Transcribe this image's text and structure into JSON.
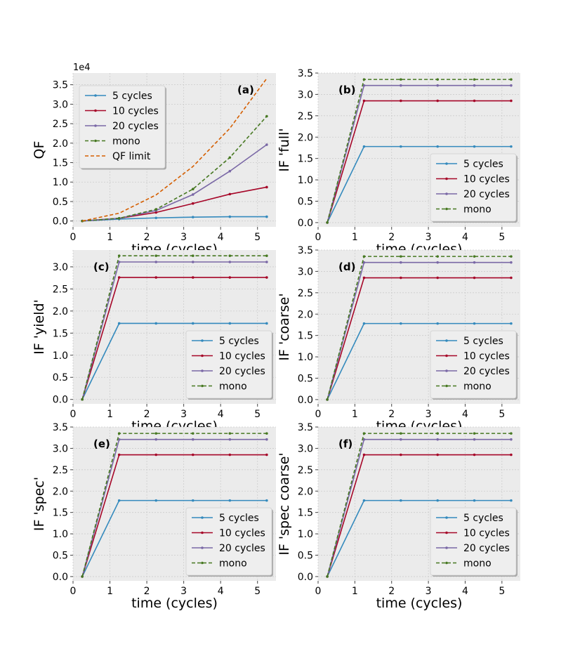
{
  "colors": {
    "5 cycles": "#348abd",
    "10 cycles": "#a60628",
    "20 cycles": "#7a68a6",
    "mono": "#467821",
    "QF limit": "#d55e00",
    "panel_bg": "#ebebeb",
    "grid": "#cccccc"
  },
  "chart_data": [
    {
      "id": "a",
      "type": "line",
      "panel_label": "(a)",
      "xlabel": "time (cycles)",
      "ylabel": "QF",
      "offset_text": "1e4",
      "xlim": [
        0,
        5.5
      ],
      "ylim": [
        -0.15,
        3.8
      ],
      "xticks": [
        0,
        1,
        2,
        3,
        4,
        5
      ],
      "yticks": [
        0.0,
        0.5,
        1.0,
        1.5,
        2.0,
        2.5,
        3.0,
        3.5
      ],
      "yticklabels": [
        "0.0",
        "0.5",
        "1.0",
        "1.5",
        "2.0",
        "2.5",
        "3.0",
        "3.5"
      ],
      "legend_loc": "upper-left",
      "x": [
        0.25,
        1.25,
        2.25,
        3.25,
        4.25,
        5.25
      ],
      "series": [
        {
          "name": "5 cycles",
          "style": "solid",
          "values": [
            0.0,
            0.05,
            0.08,
            0.1,
            0.11,
            0.11
          ]
        },
        {
          "name": "10 cycles",
          "style": "solid",
          "values": [
            0.0,
            0.07,
            0.22,
            0.45,
            0.69,
            0.87
          ]
        },
        {
          "name": "20 cycles",
          "style": "solid",
          "values": [
            0.0,
            0.07,
            0.27,
            0.68,
            1.28,
            1.96
          ]
        },
        {
          "name": "mono",
          "style": "dashed",
          "values": [
            0.0,
            0.07,
            0.3,
            0.82,
            1.63,
            2.69
          ]
        },
        {
          "name": "QF limit",
          "style": "dashed",
          "markers": false,
          "values": [
            0.0,
            0.2,
            0.67,
            1.4,
            2.38,
            3.66
          ]
        }
      ]
    },
    {
      "id": "b",
      "type": "line",
      "panel_label": "(b)",
      "xlabel": "time (cycles)",
      "ylabel": "IF 'full'",
      "xlim": [
        0,
        5.5
      ],
      "ylim": [
        -0.1,
        3.5
      ],
      "xticks": [
        0,
        1,
        2,
        3,
        4,
        5
      ],
      "yticks": [
        0.0,
        0.5,
        1.0,
        1.5,
        2.0,
        2.5,
        3.0,
        3.5
      ],
      "yticklabels": [
        "0.0",
        "0.5",
        "1.0",
        "1.5",
        "2.0",
        "2.5",
        "3.0",
        "3.5"
      ],
      "legend_loc": "lower-right",
      "x": [
        0.25,
        1.25,
        2.25,
        3.25,
        4.25,
        5.25
      ],
      "series": [
        {
          "name": "5 cycles",
          "style": "solid",
          "values": [
            0,
            1.78,
            1.78,
            1.78,
            1.78,
            1.78
          ]
        },
        {
          "name": "10 cycles",
          "style": "solid",
          "values": [
            0,
            2.85,
            2.85,
            2.85,
            2.85,
            2.85
          ]
        },
        {
          "name": "20 cycles",
          "style": "solid",
          "values": [
            0,
            3.21,
            3.21,
            3.21,
            3.21,
            3.21
          ]
        },
        {
          "name": "mono",
          "style": "dashed",
          "values": [
            0,
            3.35,
            3.35,
            3.35,
            3.35,
            3.35
          ]
        }
      ]
    },
    {
      "id": "c",
      "type": "line",
      "panel_label": "(c)",
      "xlabel": "time (cycles)",
      "ylabel": "IF 'yield'",
      "xlim": [
        0,
        5.5
      ],
      "ylim": [
        -0.1,
        3.38
      ],
      "xticks": [
        0,
        1,
        2,
        3,
        4,
        5
      ],
      "yticks": [
        0.0,
        0.5,
        1.0,
        1.5,
        2.0,
        2.5,
        3.0
      ],
      "yticklabels": [
        "0.0",
        "0.5",
        "1.0",
        "1.5",
        "2.0",
        "2.5",
        "3.0"
      ],
      "legend_loc": "lower-right",
      "x": [
        0.25,
        1.25,
        2.25,
        3.25,
        4.25,
        5.25
      ],
      "series": [
        {
          "name": "5 cycles",
          "style": "solid",
          "values": [
            0,
            1.72,
            1.72,
            1.72,
            1.72,
            1.72
          ]
        },
        {
          "name": "10 cycles",
          "style": "solid",
          "values": [
            0,
            2.76,
            2.76,
            2.76,
            2.76,
            2.76
          ]
        },
        {
          "name": "20 cycles",
          "style": "solid",
          "values": [
            0,
            3.11,
            3.11,
            3.11,
            3.11,
            3.11
          ]
        },
        {
          "name": "mono",
          "style": "dashed",
          "values": [
            0,
            3.25,
            3.25,
            3.25,
            3.25,
            3.25
          ]
        }
      ]
    },
    {
      "id": "d",
      "type": "line",
      "panel_label": "(d)",
      "xlabel": "time (cycles)",
      "ylabel": "IF 'coarse'",
      "xlim": [
        0,
        5.5
      ],
      "ylim": [
        -0.1,
        3.5
      ],
      "xticks": [
        0,
        1,
        2,
        3,
        4,
        5
      ],
      "yticks": [
        0.0,
        0.5,
        1.0,
        1.5,
        2.0,
        2.5,
        3.0,
        3.5
      ],
      "yticklabels": [
        "0.0",
        "0.5",
        "1.0",
        "1.5",
        "2.0",
        "2.5",
        "3.0",
        "3.5"
      ],
      "legend_loc": "lower-right",
      "x": [
        0.25,
        1.25,
        2.25,
        3.25,
        4.25,
        5.25
      ],
      "series": [
        {
          "name": "5 cycles",
          "style": "solid",
          "values": [
            0,
            1.78,
            1.78,
            1.78,
            1.78,
            1.78
          ]
        },
        {
          "name": "10 cycles",
          "style": "solid",
          "values": [
            0,
            2.85,
            2.85,
            2.85,
            2.85,
            2.85
          ]
        },
        {
          "name": "20 cycles",
          "style": "solid",
          "values": [
            0,
            3.21,
            3.21,
            3.21,
            3.21,
            3.21
          ]
        },
        {
          "name": "mono",
          "style": "dashed",
          "values": [
            0,
            3.35,
            3.35,
            3.35,
            3.35,
            3.35
          ]
        }
      ]
    },
    {
      "id": "e",
      "type": "line",
      "panel_label": "(e)",
      "xlabel": "time (cycles)",
      "ylabel": "IF 'spec'",
      "xlim": [
        0,
        5.5
      ],
      "ylim": [
        -0.1,
        3.5
      ],
      "xticks": [
        0,
        1,
        2,
        3,
        4,
        5
      ],
      "yticks": [
        0.0,
        0.5,
        1.0,
        1.5,
        2.0,
        2.5,
        3.0,
        3.5
      ],
      "yticklabels": [
        "0.0",
        "0.5",
        "1.0",
        "1.5",
        "2.0",
        "2.5",
        "3.0",
        "3.5"
      ],
      "legend_loc": "lower-right",
      "x": [
        0.25,
        1.25,
        2.25,
        3.25,
        4.25,
        5.25
      ],
      "series": [
        {
          "name": "5 cycles",
          "style": "solid",
          "values": [
            0,
            1.78,
            1.78,
            1.78,
            1.78,
            1.78
          ]
        },
        {
          "name": "10 cycles",
          "style": "solid",
          "values": [
            0,
            2.85,
            2.85,
            2.85,
            2.85,
            2.85
          ]
        },
        {
          "name": "20 cycles",
          "style": "solid",
          "values": [
            0,
            3.21,
            3.21,
            3.21,
            3.21,
            3.21
          ]
        },
        {
          "name": "mono",
          "style": "dashed",
          "values": [
            0,
            3.35,
            3.35,
            3.35,
            3.35,
            3.35
          ]
        }
      ]
    },
    {
      "id": "f",
      "type": "line",
      "panel_label": "(f)",
      "xlabel": "time (cycles)",
      "ylabel": "IF 'spec coarse'",
      "xlim": [
        0,
        5.5
      ],
      "ylim": [
        -0.1,
        3.5
      ],
      "xticks": [
        0,
        1,
        2,
        3,
        4,
        5
      ],
      "yticks": [
        0.0,
        0.5,
        1.0,
        1.5,
        2.0,
        2.5,
        3.0,
        3.5
      ],
      "yticklabels": [
        "0.0",
        "0.5",
        "1.0",
        "1.5",
        "2.0",
        "2.5",
        "3.0",
        "3.5"
      ],
      "legend_loc": "lower-right",
      "x": [
        0.25,
        1.25,
        2.25,
        3.25,
        4.25,
        5.25
      ],
      "series": [
        {
          "name": "5 cycles",
          "style": "solid",
          "values": [
            0,
            1.78,
            1.78,
            1.78,
            1.78,
            1.78
          ]
        },
        {
          "name": "10 cycles",
          "style": "solid",
          "values": [
            0,
            2.85,
            2.85,
            2.85,
            2.85,
            2.85
          ]
        },
        {
          "name": "20 cycles",
          "style": "solid",
          "values": [
            0,
            3.21,
            3.21,
            3.21,
            3.21,
            3.21
          ]
        },
        {
          "name": "mono",
          "style": "dashed",
          "values": [
            0,
            3.35,
            3.35,
            3.35,
            3.35,
            3.35
          ]
        }
      ]
    }
  ]
}
